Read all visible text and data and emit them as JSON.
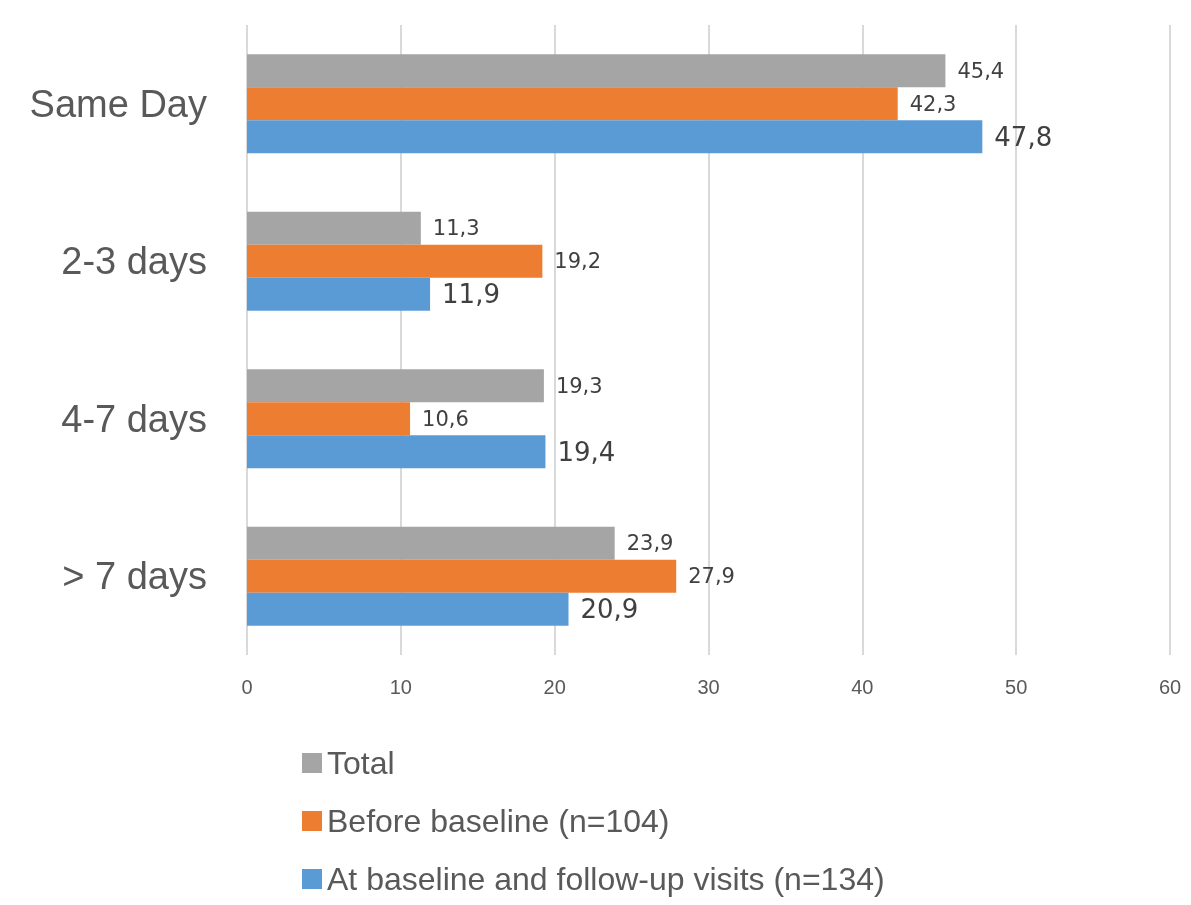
{
  "chart_data": {
    "type": "bar",
    "orientation": "horizontal",
    "categories": [
      "Same Day",
      "2-3 days",
      "4-7 days",
      "> 7 days"
    ],
    "series": [
      {
        "name": "Total",
        "color": "#a5a5a5",
        "values": [
          45.4,
          11.3,
          19.3,
          23.9
        ],
        "value_labels": [
          "45,4",
          "11,3",
          "19,3",
          "23,9"
        ]
      },
      {
        "name": "Before baseline (n=104)",
        "color": "#ed7d31",
        "values": [
          42.3,
          19.2,
          10.6,
          27.9
        ],
        "value_labels": [
          "42,3",
          "19,2",
          "10,6",
          "27,9"
        ]
      },
      {
        "name": "At baseline and follow-up visits (n=134)",
        "color": "#5b9bd5",
        "values": [
          47.8,
          11.9,
          19.4,
          20.9
        ],
        "value_labels": [
          "47,8",
          "11,9",
          "19,4",
          "20,9"
        ]
      }
    ],
    "xlim": [
      0,
      60
    ],
    "xticks": [
      0,
      10,
      20,
      30,
      40,
      50,
      60
    ],
    "grid": "x",
    "legend": "bottom"
  }
}
